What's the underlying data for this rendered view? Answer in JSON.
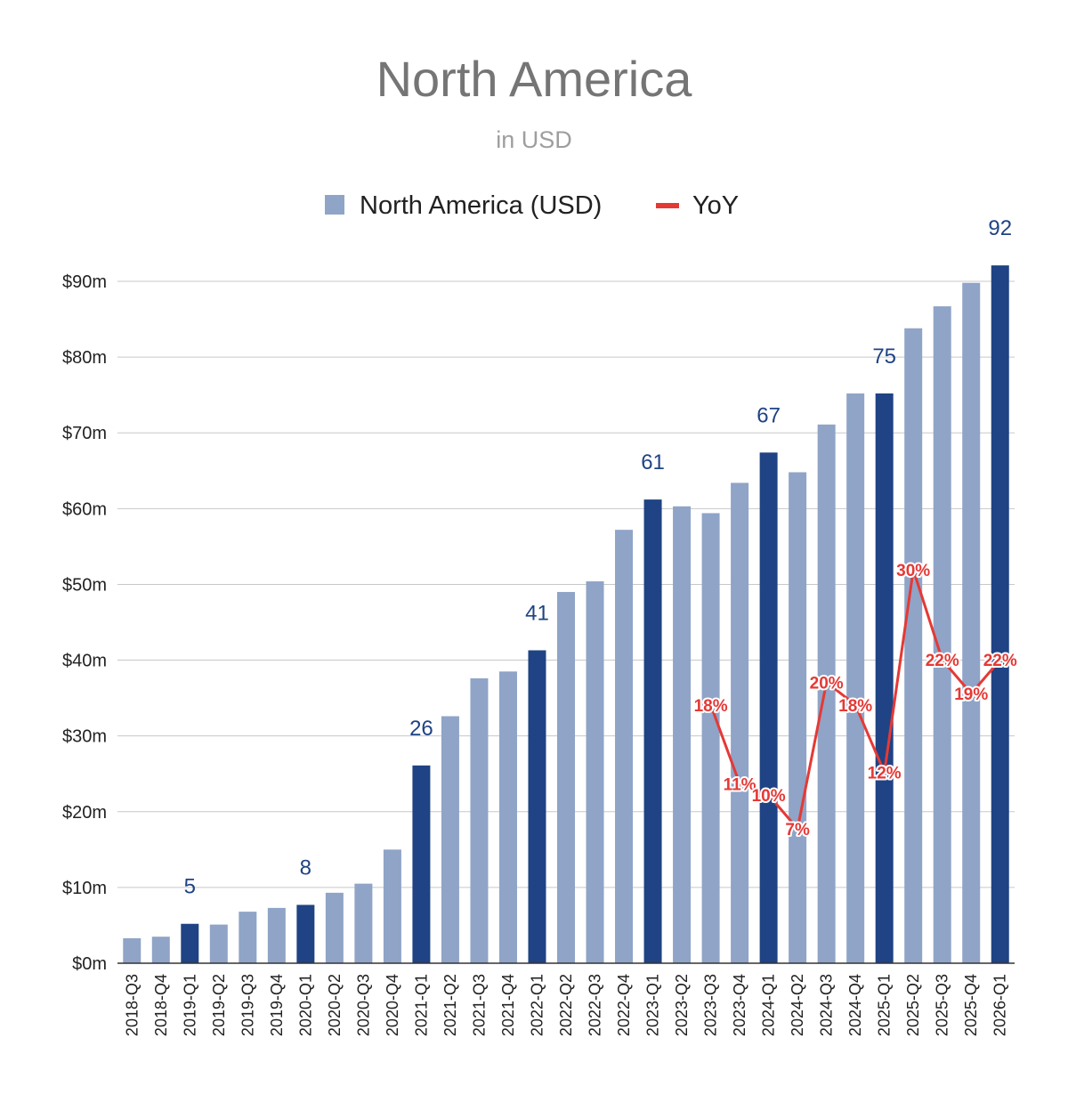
{
  "chart_data": {
    "type": "bar",
    "title": "North America",
    "subtitle": "in USD",
    "xlabel": "",
    "ylabel": "",
    "ylim": [
      0,
      90
    ],
    "y_ticks": [
      "$0m",
      "$10m",
      "$20m",
      "$30m",
      "$40m",
      "$50m",
      "$60m",
      "$70m",
      "$80m",
      "$90m"
    ],
    "legend": {
      "position": "top",
      "bar": "North America (USD)",
      "line": "YoY"
    },
    "colors": {
      "bar": "#8fa4c7",
      "bar_highlight": "#1f4384",
      "line": "#e53935",
      "label": "#1f4384",
      "grid": "#c8c8c8"
    },
    "categories": [
      "2018-Q3",
      "2018-Q4",
      "2019-Q1",
      "2019-Q2",
      "2019-Q3",
      "2019-Q4",
      "2020-Q1",
      "2020-Q2",
      "2020-Q3",
      "2020-Q4",
      "2021-Q1",
      "2021-Q2",
      "2021-Q3",
      "2021-Q4",
      "2022-Q1",
      "2022-Q2",
      "2022-Q3",
      "2022-Q4",
      "2023-Q1",
      "2023-Q2",
      "2023-Q3",
      "2023-Q4",
      "2024-Q1",
      "2024-Q2",
      "2024-Q3",
      "2024-Q4",
      "2025-Q1",
      "2025-Q2",
      "2025-Q3",
      "2025-Q4",
      "2026-Q1"
    ],
    "series": [
      {
        "name": "North America (USD)",
        "values": [
          3.3,
          3.5,
          5.2,
          5.1,
          6.8,
          7.3,
          7.7,
          9.3,
          10.5,
          15.0,
          26.1,
          32.6,
          37.6,
          38.5,
          41.3,
          49.0,
          50.4,
          57.2,
          61.2,
          60.3,
          59.4,
          63.4,
          67.4,
          64.8,
          71.1,
          75.2,
          75.2,
          83.8,
          86.7,
          89.8,
          92.1
        ],
        "highlighted": [
          "2019-Q1",
          "2020-Q1",
          "2021-Q1",
          "2022-Q1",
          "2023-Q1",
          "2024-Q1",
          "2025-Q1",
          "2026-Q1"
        ],
        "labels": [
          {
            "category": "2019-Q1",
            "text": "5"
          },
          {
            "category": "2020-Q1",
            "text": "8"
          },
          {
            "category": "2021-Q1",
            "text": "26"
          },
          {
            "category": "2022-Q1",
            "text": "41"
          },
          {
            "category": "2023-Q1",
            "text": "61"
          },
          {
            "category": "2024-Q1",
            "text": "67"
          },
          {
            "category": "2025-Q1",
            "text": "75"
          },
          {
            "category": "2026-Q1",
            "text": "92"
          }
        ]
      },
      {
        "name": "YoY",
        "type": "line",
        "points": [
          {
            "category": "2023-Q3",
            "value": 18,
            "label": "18%"
          },
          {
            "category": "2023-Q4",
            "value": 11,
            "label": "11%"
          },
          {
            "category": "2024-Q1",
            "value": 10,
            "label": "10%"
          },
          {
            "category": "2024-Q2",
            "value": 7,
            "label": "7%"
          },
          {
            "category": "2024-Q3",
            "value": 20,
            "label": "20%"
          },
          {
            "category": "2024-Q4",
            "value": 18,
            "label": "18%"
          },
          {
            "category": "2025-Q1",
            "value": 12,
            "label": "12%"
          },
          {
            "category": "2025-Q2",
            "value": 30,
            "label": "30%"
          },
          {
            "category": "2025-Q3",
            "value": 22,
            "label": "22%"
          },
          {
            "category": "2025-Q4",
            "value": 19,
            "label": "19%"
          },
          {
            "category": "2026-Q1",
            "value": 22,
            "label": "22%"
          }
        ]
      }
    ]
  }
}
